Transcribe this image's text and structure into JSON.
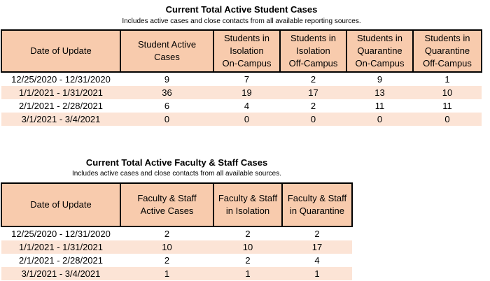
{
  "student": {
    "title": "Current Total Active Student Cases",
    "subtitle": "Includes active cases and close contacts from all available reporting sources.",
    "headers": [
      [
        "Date of Update"
      ],
      [
        "Student Active",
        "Cases"
      ],
      [
        "Students in",
        "Isolation",
        "On-Campus"
      ],
      [
        "Students in",
        "Isolation",
        "Off-Campus"
      ],
      [
        "Students in",
        "Quarantine",
        "On-Campus"
      ],
      [
        "Students in",
        "Quarantine",
        "Off-Campus"
      ]
    ],
    "rows": [
      [
        "12/25/2020 - 12/31/2020",
        "9",
        "7",
        "2",
        "9",
        "1"
      ],
      [
        "1/1/2021 - 1/31/2021",
        "36",
        "19",
        "17",
        "13",
        "10"
      ],
      [
        "2/1/2021 - 2/28/2021",
        "6",
        "4",
        "2",
        "11",
        "11"
      ],
      [
        "3/1/2021 - 3/4/2021",
        "0",
        "0",
        "0",
        "0",
        "0"
      ]
    ]
  },
  "faculty": {
    "title": "Current Total Active Faculty & Staff Cases",
    "subtitle": "Includes active cases and close contacts from all available sources.",
    "headers": [
      [
        "Date of Update"
      ],
      [
        "Faculty & Staff",
        "Active Cases"
      ],
      [
        "Faculty & Staff",
        "in Isolation"
      ],
      [
        "Faculty & Staff",
        "in Quarantine"
      ]
    ],
    "rows": [
      [
        "12/25/2020 - 12/31/2020",
        "2",
        "2",
        "2"
      ],
      [
        "1/1/2021 - 1/31/2021",
        "10",
        "10",
        "17"
      ],
      [
        "2/1/2021 - 2/28/2021",
        "2",
        "2",
        "4"
      ],
      [
        "3/1/2021 - 3/4/2021",
        "1",
        "1",
        "1"
      ]
    ]
  }
}
